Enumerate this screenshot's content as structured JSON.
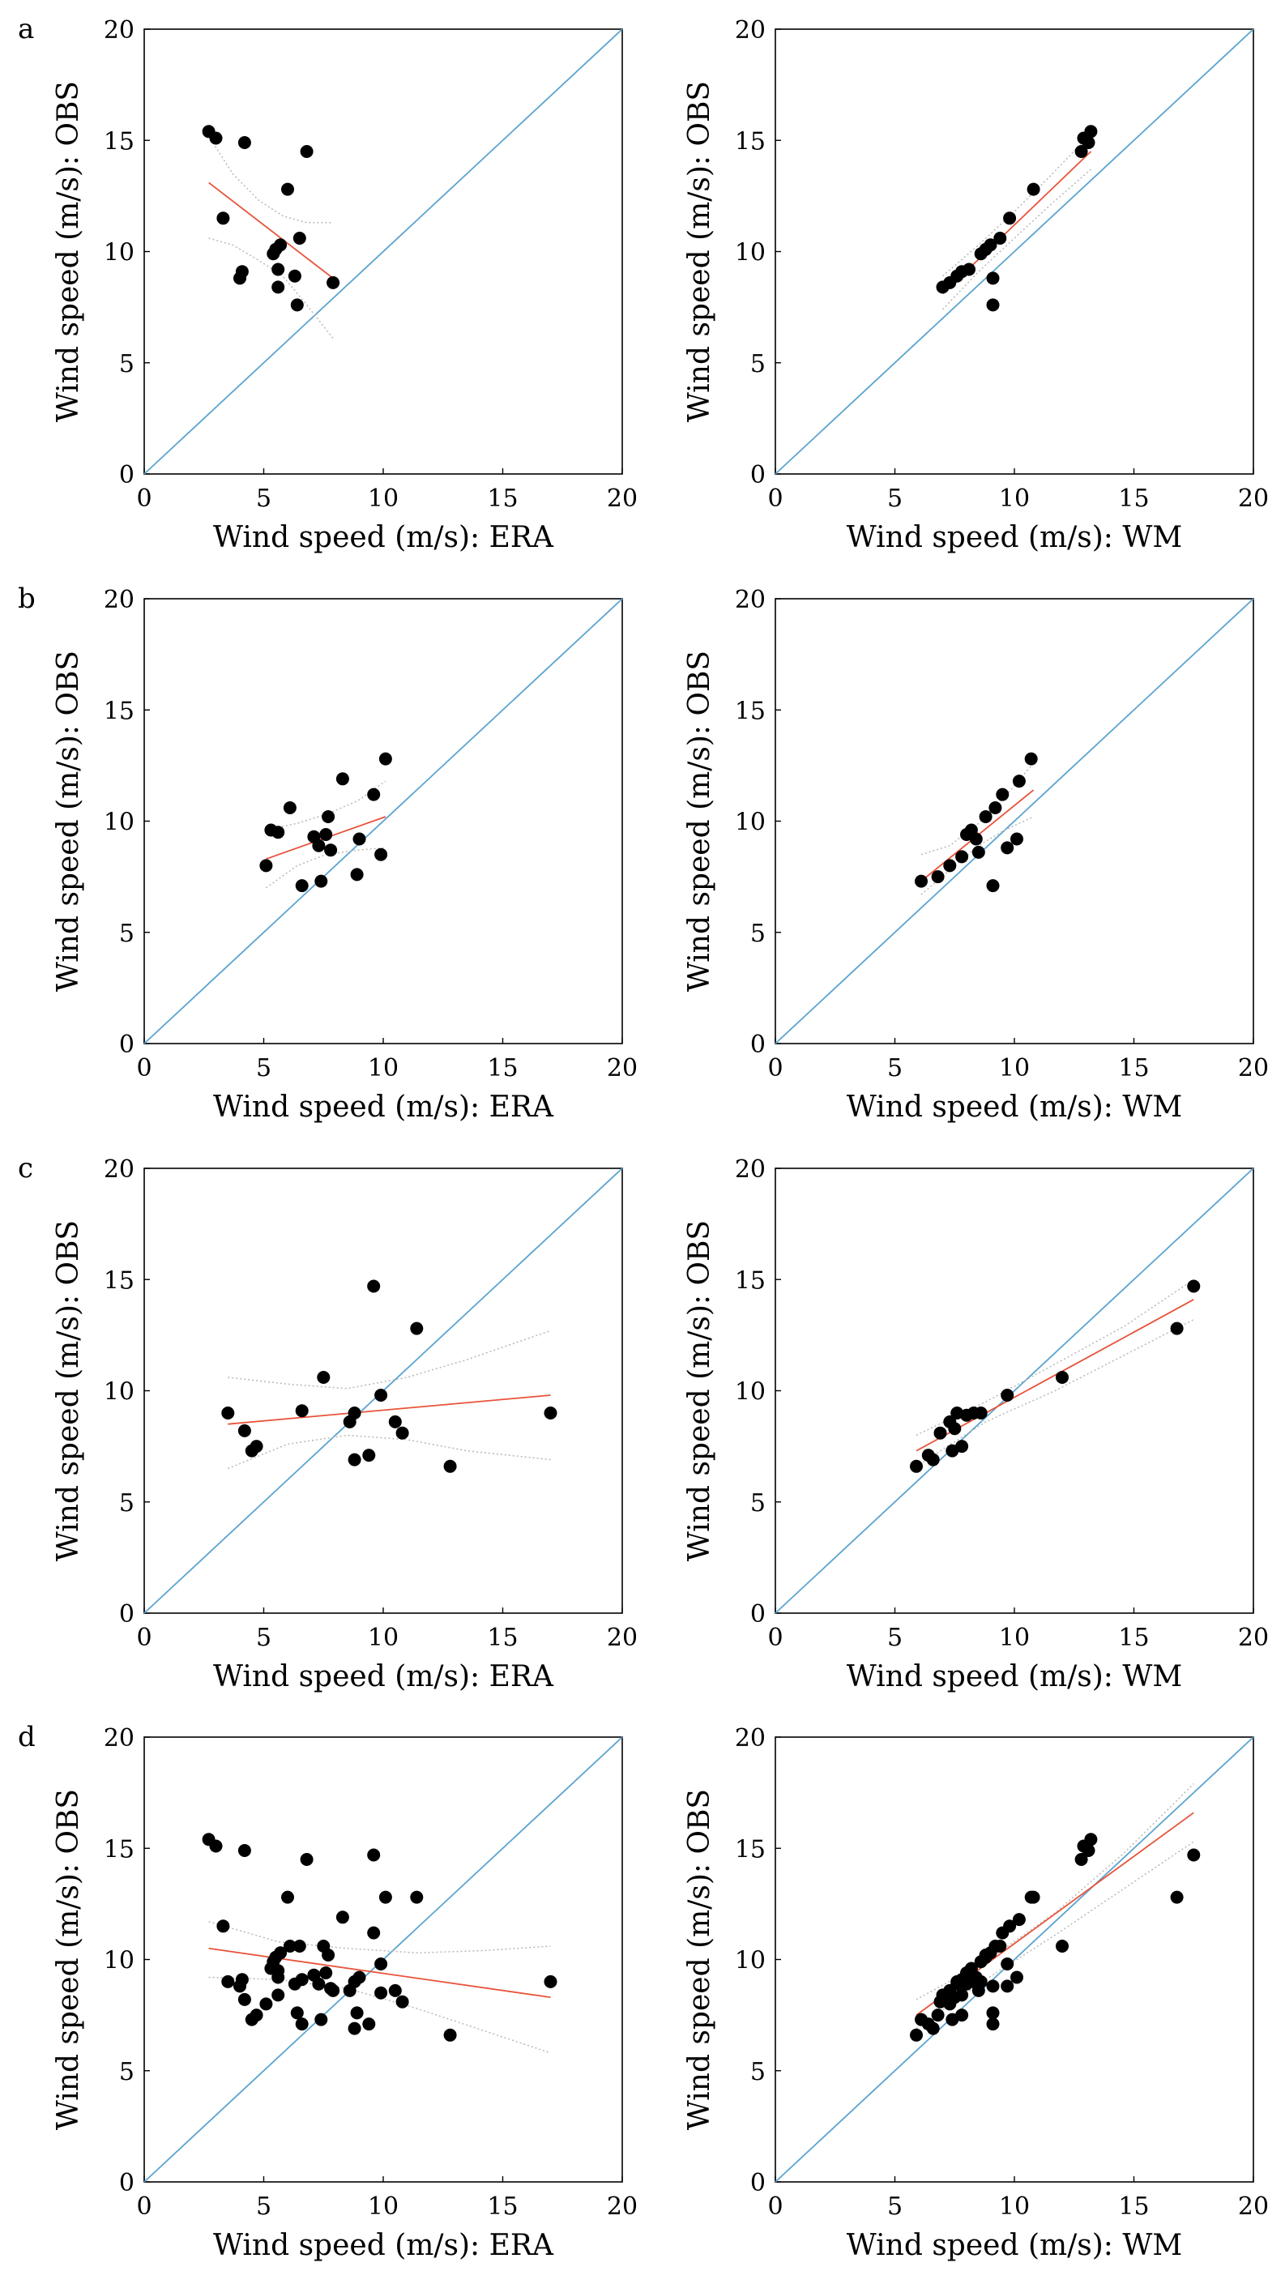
{
  "figure": {
    "panel_labels": [
      "a",
      "b",
      "c",
      "d"
    ],
    "colors": {
      "identity_line": "#5BA3D0",
      "fit_line": "#E8533A",
      "confidence_band": "#B8B8B8",
      "points": "#000000",
      "axes": "#000000"
    }
  },
  "chart_data": [
    {
      "id": "a-era",
      "panel": "a",
      "type": "scatter",
      "xlabel": "Wind speed (m/s): ERA",
      "ylabel": "Wind speed (m/s): OBS",
      "xlim": [
        0,
        20
      ],
      "ylim": [
        0,
        20
      ],
      "xticks": [
        0,
        5,
        10,
        15,
        20
      ],
      "yticks": [
        0,
        5,
        10,
        15,
        20
      ],
      "points": [
        [
          2.7,
          15.4
        ],
        [
          3.0,
          15.1
        ],
        [
          3.3,
          11.5
        ],
        [
          4.0,
          8.8
        ],
        [
          4.1,
          9.1
        ],
        [
          4.2,
          14.9
        ],
        [
          5.4,
          9.9
        ],
        [
          5.5,
          10.1
        ],
        [
          5.6,
          9.2
        ],
        [
          5.6,
          8.4
        ],
        [
          5.7,
          10.3
        ],
        [
          6.0,
          12.8
        ],
        [
          6.3,
          8.9
        ],
        [
          6.4,
          7.6
        ],
        [
          6.5,
          10.6
        ],
        [
          6.8,
          14.5
        ],
        [
          7.9,
          8.6
        ]
      ],
      "fit": {
        "x": [
          2.7,
          7.9
        ],
        "y": [
          13.1,
          8.8
        ]
      },
      "ci_upper": [
        [
          2.7,
          15.2
        ],
        [
          3.7,
          13.5
        ],
        [
          4.8,
          12.3
        ],
        [
          5.8,
          11.6
        ],
        [
          6.8,
          11.3
        ],
        [
          7.9,
          11.3
        ]
      ],
      "ci_lower": [
        [
          2.7,
          10.6
        ],
        [
          3.7,
          10.3
        ],
        [
          4.8,
          9.6
        ],
        [
          5.8,
          8.9
        ],
        [
          6.8,
          7.6
        ],
        [
          7.9,
          6.1
        ]
      ]
    },
    {
      "id": "a-wm",
      "panel": "a",
      "type": "scatter",
      "xlabel": "Wind speed (m/s): WM",
      "ylabel": "Wind speed (m/s): OBS",
      "xlim": [
        0,
        20
      ],
      "ylim": [
        0,
        20
      ],
      "xticks": [
        0,
        5,
        10,
        15,
        20
      ],
      "yticks": [
        0,
        5,
        10,
        15,
        20
      ],
      "points": [
        [
          7.0,
          8.4
        ],
        [
          7.3,
          8.6
        ],
        [
          7.6,
          8.9
        ],
        [
          7.8,
          9.1
        ],
        [
          8.1,
          9.2
        ],
        [
          8.6,
          9.9
        ],
        [
          8.8,
          10.1
        ],
        [
          9.0,
          10.3
        ],
        [
          9.1,
          8.8
        ],
        [
          9.1,
          7.6
        ],
        [
          9.4,
          10.6
        ],
        [
          9.8,
          11.5
        ],
        [
          10.8,
          12.8
        ],
        [
          12.8,
          14.5
        ],
        [
          12.9,
          15.1
        ],
        [
          13.1,
          14.9
        ],
        [
          13.2,
          15.4
        ]
      ],
      "fit": {
        "x": [
          7.0,
          13.2
        ],
        "y": [
          8.1,
          14.5
        ]
      },
      "ci_upper": [
        [
          7.0,
          8.9
        ],
        [
          8.5,
          10.3
        ],
        [
          10.0,
          11.8
        ],
        [
          11.5,
          13.4
        ],
        [
          13.2,
          15.3
        ]
      ],
      "ci_lower": [
        [
          7.0,
          7.4
        ],
        [
          8.5,
          9.1
        ],
        [
          10.0,
          10.6
        ],
        [
          11.5,
          12.1
        ],
        [
          13.2,
          13.7
        ]
      ]
    },
    {
      "id": "b-era",
      "panel": "b",
      "type": "scatter",
      "xlabel": "Wind speed (m/s): ERA",
      "ylabel": "Wind speed (m/s): OBS",
      "xlim": [
        0,
        20
      ],
      "ylim": [
        0,
        20
      ],
      "xticks": [
        0,
        5,
        10,
        15,
        20
      ],
      "yticks": [
        0,
        5,
        10,
        15,
        20
      ],
      "points": [
        [
          5.1,
          8.0
        ],
        [
          5.3,
          9.6
        ],
        [
          5.6,
          9.5
        ],
        [
          6.1,
          10.6
        ],
        [
          6.6,
          7.1
        ],
        [
          7.1,
          9.3
        ],
        [
          7.3,
          8.9
        ],
        [
          7.4,
          7.3
        ],
        [
          7.6,
          9.4
        ],
        [
          7.7,
          10.2
        ],
        [
          7.8,
          8.7
        ],
        [
          8.3,
          11.9
        ],
        [
          8.9,
          7.6
        ],
        [
          9.0,
          9.2
        ],
        [
          9.6,
          11.2
        ],
        [
          9.9,
          8.5
        ],
        [
          10.1,
          12.8
        ]
      ],
      "fit": {
        "x": [
          5.1,
          10.1
        ],
        "y": [
          8.3,
          10.2
        ]
      },
      "ci_upper": [
        [
          5.1,
          9.6
        ],
        [
          6.4,
          9.9
        ],
        [
          7.6,
          10.3
        ],
        [
          8.9,
          10.9
        ],
        [
          10.1,
          11.8
        ]
      ],
      "ci_lower": [
        [
          5.1,
          7.0
        ],
        [
          6.4,
          8.0
        ],
        [
          7.6,
          8.5
        ],
        [
          8.9,
          8.7
        ],
        [
          10.1,
          8.8
        ]
      ]
    },
    {
      "id": "b-wm",
      "panel": "b",
      "type": "scatter",
      "xlabel": "Wind speed (m/s): WM",
      "ylabel": "Wind speed (m/s): OBS",
      "xlim": [
        0,
        20
      ],
      "ylim": [
        0,
        20
      ],
      "xticks": [
        0,
        5,
        10,
        15,
        20
      ],
      "yticks": [
        0,
        5,
        10,
        15,
        20
      ],
      "points": [
        [
          6.1,
          7.3
        ],
        [
          6.8,
          7.5
        ],
        [
          7.3,
          8.0
        ],
        [
          7.8,
          8.4
        ],
        [
          8.0,
          9.4
        ],
        [
          8.2,
          9.6
        ],
        [
          8.4,
          9.2
        ],
        [
          8.5,
          8.6
        ],
        [
          8.8,
          10.2
        ],
        [
          9.1,
          7.1
        ],
        [
          9.2,
          10.6
        ],
        [
          9.5,
          11.2
        ],
        [
          9.7,
          8.8
        ],
        [
          10.1,
          9.2
        ],
        [
          10.2,
          11.8
        ],
        [
          10.7,
          12.8
        ]
      ],
      "fit": {
        "x": [
          6.1,
          10.8
        ],
        "y": [
          7.3,
          11.4
        ]
      },
      "ci_upper": [
        [
          6.1,
          8.5
        ],
        [
          7.3,
          8.9
        ],
        [
          8.5,
          9.9
        ],
        [
          9.6,
          11.1
        ],
        [
          10.8,
          12.6
        ]
      ],
      "ci_lower": [
        [
          6.1,
          6.7
        ],
        [
          7.3,
          7.8
        ],
        [
          8.5,
          8.9
        ],
        [
          9.6,
          9.6
        ],
        [
          10.8,
          10.2
        ]
      ]
    },
    {
      "id": "c-era",
      "panel": "c",
      "type": "scatter",
      "xlabel": "Wind speed (m/s): ERA",
      "ylabel": "Wind speed (m/s): OBS",
      "xlim": [
        0,
        20
      ],
      "ylim": [
        0,
        20
      ],
      "xticks": [
        0,
        5,
        10,
        15,
        20
      ],
      "yticks": [
        0,
        5,
        10,
        15,
        20
      ],
      "points": [
        [
          3.5,
          9.0
        ],
        [
          4.2,
          8.2
        ],
        [
          4.5,
          7.3
        ],
        [
          4.7,
          7.5
        ],
        [
          6.6,
          9.1
        ],
        [
          7.5,
          10.6
        ],
        [
          8.6,
          8.6
        ],
        [
          8.8,
          9.0
        ],
        [
          8.8,
          6.9
        ],
        [
          9.4,
          7.1
        ],
        [
          9.6,
          14.7
        ],
        [
          9.9,
          9.8
        ],
        [
          10.5,
          8.6
        ],
        [
          10.8,
          8.1
        ],
        [
          11.4,
          12.8
        ],
        [
          12.8,
          6.6
        ],
        [
          17.0,
          9.0
        ]
      ],
      "fit": {
        "x": [
          3.5,
          17.0
        ],
        "y": [
          8.5,
          9.8
        ]
      },
      "ci_upper": [
        [
          3.5,
          10.6
        ],
        [
          6.0,
          10.3
        ],
        [
          8.5,
          10.1
        ],
        [
          11.0,
          10.6
        ],
        [
          13.5,
          11.4
        ],
        [
          17.0,
          12.7
        ]
      ],
      "ci_lower": [
        [
          3.5,
          6.5
        ],
        [
          6.0,
          7.6
        ],
        [
          8.5,
          8.0
        ],
        [
          11.0,
          7.8
        ],
        [
          13.5,
          7.3
        ],
        [
          17.0,
          6.9
        ]
      ]
    },
    {
      "id": "c-wm",
      "panel": "c",
      "type": "scatter",
      "xlabel": "Wind speed (m/s): WM",
      "ylabel": "Wind speed (m/s): OBS",
      "xlim": [
        0,
        20
      ],
      "ylim": [
        0,
        20
      ],
      "xticks": [
        0,
        5,
        10,
        15,
        20
      ],
      "yticks": [
        0,
        5,
        10,
        15,
        20
      ],
      "points": [
        [
          5.9,
          6.6
        ],
        [
          6.4,
          7.1
        ],
        [
          6.6,
          6.9
        ],
        [
          6.9,
          8.1
        ],
        [
          7.3,
          8.6
        ],
        [
          7.4,
          7.3
        ],
        [
          7.5,
          8.3
        ],
        [
          7.6,
          9.0
        ],
        [
          7.8,
          7.5
        ],
        [
          8.0,
          8.9
        ],
        [
          8.3,
          9.0
        ],
        [
          8.6,
          9.0
        ],
        [
          9.7,
          9.8
        ],
        [
          12.0,
          10.6
        ],
        [
          16.8,
          12.8
        ],
        [
          17.5,
          14.7
        ]
      ],
      "fit": {
        "x": [
          5.9,
          17.5
        ],
        "y": [
          7.3,
          14.1
        ]
      },
      "ci_upper": [
        [
          5.9,
          8.0
        ],
        [
          8.8,
          9.5
        ],
        [
          11.7,
          11.2
        ],
        [
          14.6,
          12.9
        ],
        [
          17.5,
          15.0
        ]
      ],
      "ci_lower": [
        [
          5.9,
          6.6
        ],
        [
          8.8,
          8.6
        ],
        [
          11.7,
          10.0
        ],
        [
          14.6,
          11.6
        ],
        [
          17.5,
          13.2
        ]
      ]
    },
    {
      "id": "d-era",
      "panel": "d",
      "type": "scatter",
      "xlabel": "Wind speed (m/s): ERA",
      "ylabel": "Wind speed (m/s): OBS",
      "xlim": [
        0,
        20
      ],
      "ylim": [
        0,
        20
      ],
      "xticks": [
        0,
        5,
        10,
        15,
        20
      ],
      "yticks": [
        0,
        5,
        10,
        15,
        20
      ],
      "points": [
        [
          2.7,
          15.4
        ],
        [
          3.0,
          15.1
        ],
        [
          3.3,
          11.5
        ],
        [
          4.0,
          8.8
        ],
        [
          4.1,
          9.1
        ],
        [
          4.2,
          14.9
        ],
        [
          5.4,
          9.9
        ],
        [
          5.5,
          10.1
        ],
        [
          5.6,
          9.2
        ],
        [
          5.6,
          8.4
        ],
        [
          5.7,
          10.3
        ],
        [
          6.0,
          12.8
        ],
        [
          6.3,
          8.9
        ],
        [
          6.4,
          7.6
        ],
        [
          6.5,
          10.6
        ],
        [
          6.8,
          14.5
        ],
        [
          7.9,
          8.6
        ],
        [
          5.1,
          8.0
        ],
        [
          5.3,
          9.6
        ],
        [
          5.6,
          9.5
        ],
        [
          6.1,
          10.6
        ],
        [
          6.6,
          7.1
        ],
        [
          7.1,
          9.3
        ],
        [
          7.3,
          8.9
        ],
        [
          7.4,
          7.3
        ],
        [
          7.6,
          9.4
        ],
        [
          7.7,
          10.2
        ],
        [
          7.8,
          8.7
        ],
        [
          8.3,
          11.9
        ],
        [
          8.9,
          7.6
        ],
        [
          9.0,
          9.2
        ],
        [
          9.6,
          11.2
        ],
        [
          9.9,
          8.5
        ],
        [
          10.1,
          12.8
        ],
        [
          3.5,
          9.0
        ],
        [
          4.2,
          8.2
        ],
        [
          4.5,
          7.3
        ],
        [
          4.7,
          7.5
        ],
        [
          6.6,
          9.1
        ],
        [
          7.5,
          10.6
        ],
        [
          8.6,
          8.6
        ],
        [
          8.8,
          9.0
        ],
        [
          8.8,
          6.9
        ],
        [
          9.4,
          7.1
        ],
        [
          9.6,
          14.7
        ],
        [
          9.9,
          9.8
        ],
        [
          10.5,
          8.6
        ],
        [
          10.8,
          8.1
        ],
        [
          11.4,
          12.8
        ],
        [
          12.8,
          6.6
        ],
        [
          17.0,
          9.0
        ]
      ],
      "fit": {
        "x": [
          2.7,
          17.0
        ],
        "y": [
          10.5,
          8.3
        ]
      },
      "ci_upper": [
        [
          2.7,
          11.7
        ],
        [
          5.6,
          10.8
        ],
        [
          8.5,
          10.5
        ],
        [
          11.4,
          10.3
        ],
        [
          14.2,
          10.4
        ],
        [
          17.0,
          10.6
        ]
      ],
      "ci_lower": [
        [
          2.7,
          9.2
        ],
        [
          5.6,
          9.1
        ],
        [
          8.5,
          8.7
        ],
        [
          11.4,
          7.8
        ],
        [
          14.2,
          6.8
        ],
        [
          17.0,
          5.8
        ]
      ]
    },
    {
      "id": "d-wm",
      "panel": "d",
      "type": "scatter",
      "xlabel": "Wind speed (m/s): WM",
      "ylabel": "Wind speed (m/s): OBS",
      "xlim": [
        0,
        20
      ],
      "ylim": [
        0,
        20
      ],
      "xticks": [
        0,
        5,
        10,
        15,
        20
      ],
      "yticks": [
        0,
        5,
        10,
        15,
        20
      ],
      "points": [
        [
          7.0,
          8.4
        ],
        [
          7.3,
          8.6
        ],
        [
          7.6,
          8.9
        ],
        [
          7.8,
          9.1
        ],
        [
          8.1,
          9.2
        ],
        [
          8.6,
          9.9
        ],
        [
          8.8,
          10.1
        ],
        [
          9.0,
          10.3
        ],
        [
          9.1,
          8.8
        ],
        [
          9.1,
          7.6
        ],
        [
          9.4,
          10.6
        ],
        [
          9.8,
          11.5
        ],
        [
          10.8,
          12.8
        ],
        [
          12.8,
          14.5
        ],
        [
          12.9,
          15.1
        ],
        [
          13.1,
          14.9
        ],
        [
          13.2,
          15.4
        ],
        [
          6.1,
          7.3
        ],
        [
          6.8,
          7.5
        ],
        [
          7.3,
          8.0
        ],
        [
          7.8,
          8.4
        ],
        [
          8.0,
          9.4
        ],
        [
          8.2,
          9.6
        ],
        [
          8.4,
          9.2
        ],
        [
          8.5,
          8.6
        ],
        [
          8.8,
          10.2
        ],
        [
          9.1,
          7.1
        ],
        [
          9.2,
          10.6
        ],
        [
          9.5,
          11.2
        ],
        [
          9.7,
          8.8
        ],
        [
          10.1,
          9.2
        ],
        [
          10.2,
          11.8
        ],
        [
          10.7,
          12.8
        ],
        [
          5.9,
          6.6
        ],
        [
          6.4,
          7.1
        ],
        [
          6.6,
          6.9
        ],
        [
          6.9,
          8.1
        ],
        [
          7.3,
          8.6
        ],
        [
          7.4,
          7.3
        ],
        [
          7.5,
          8.3
        ],
        [
          7.6,
          9.0
        ],
        [
          7.8,
          7.5
        ],
        [
          8.0,
          8.9
        ],
        [
          8.3,
          9.0
        ],
        [
          8.6,
          9.0
        ],
        [
          9.7,
          9.8
        ],
        [
          12.0,
          10.6
        ],
        [
          16.8,
          12.8
        ],
        [
          17.5,
          14.7
        ]
      ],
      "fit": {
        "x": [
          5.9,
          17.5
        ],
        "y": [
          7.5,
          16.6
        ]
      },
      "ci_upper": [
        [
          5.9,
          8.2
        ],
        [
          8.8,
          9.9
        ],
        [
          11.7,
          12.1
        ],
        [
          14.6,
          14.8
        ],
        [
          17.5,
          17.9
        ]
      ],
      "ci_lower": [
        [
          5.9,
          6.9
        ],
        [
          8.8,
          9.1
        ],
        [
          11.7,
          11.1
        ],
        [
          14.6,
          13.2
        ],
        [
          17.5,
          15.3
        ]
      ]
    }
  ]
}
